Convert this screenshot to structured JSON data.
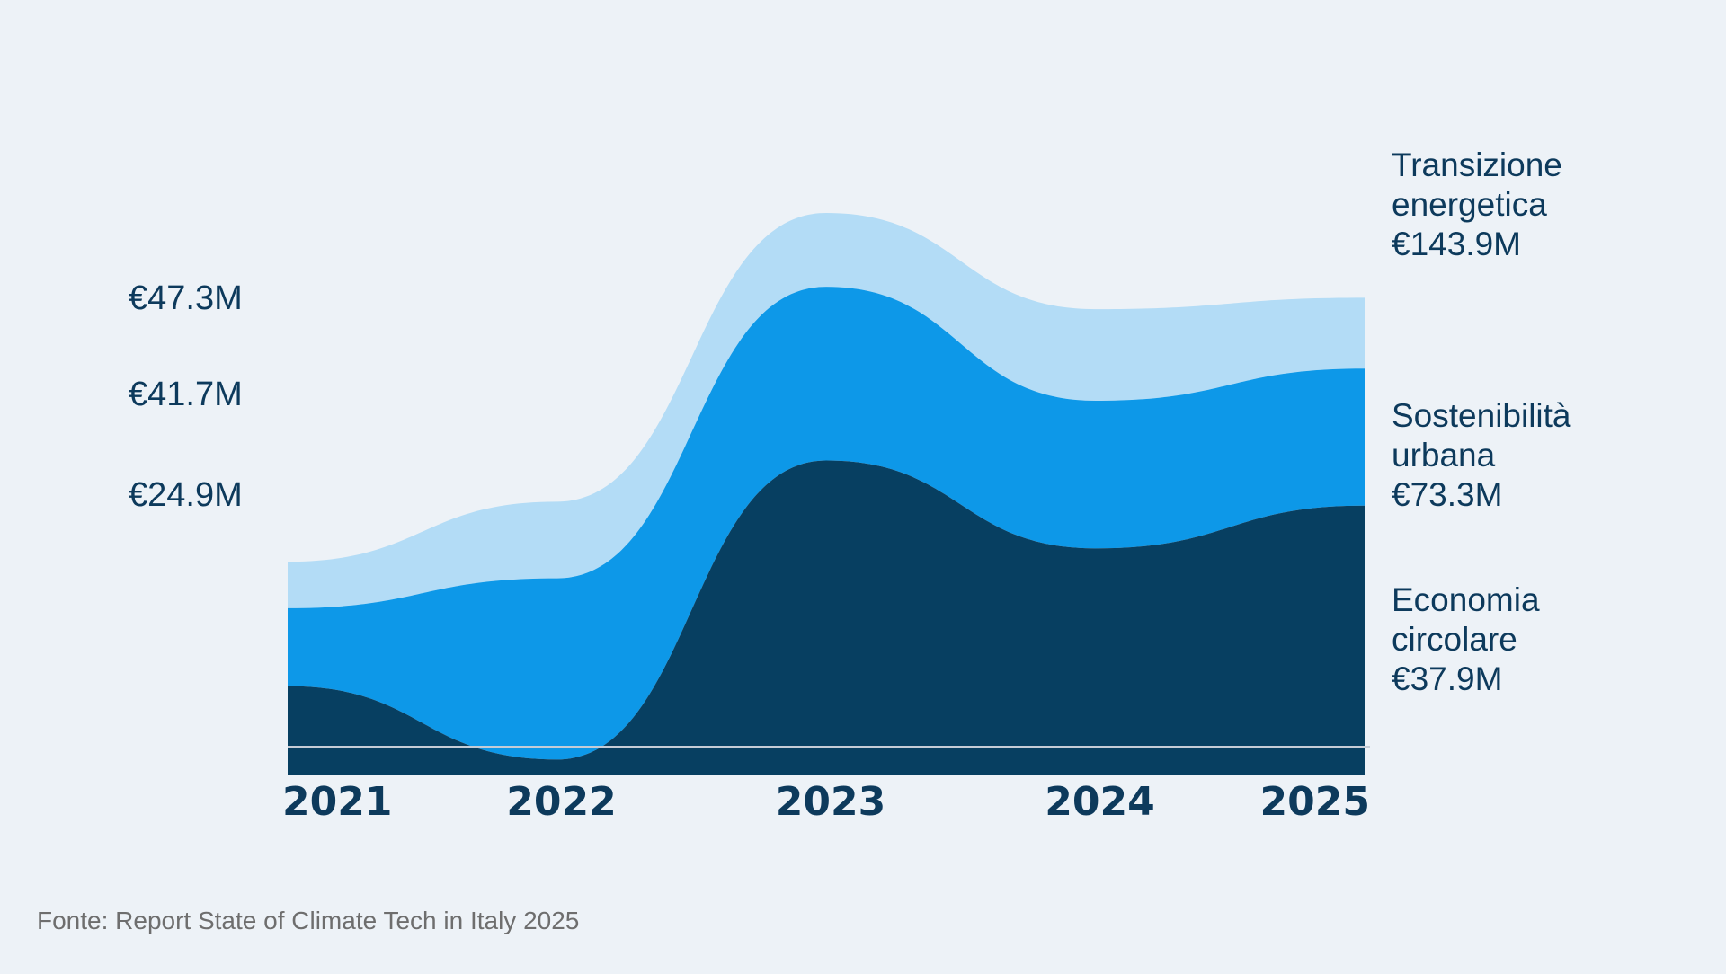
{
  "chart_data": {
    "type": "area",
    "title": "",
    "xlabel": "",
    "ylabel": "",
    "grid": false,
    "legend": "direct-labels-right",
    "categories": [
      "2021",
      "2022",
      "2023",
      "2024",
      "2025"
    ],
    "series": [
      {
        "name": "Transizione energetica",
        "value_label": "€143.9M",
        "start_label": "€47.3M",
        "color": "#073f61",
        "values": [
          47.3,
          8,
          168,
          121,
          143.9
        ]
      },
      {
        "name": "Sostenibilità urbana",
        "value_label": "€73.3M",
        "start_label": "€41.7M",
        "color": "#0d98e8",
        "values": [
          41.7,
          97,
          93,
          79,
          73.3
        ]
      },
      {
        "name": "Economia circolare",
        "value_label": "€37.9M",
        "start_label": "€24.9M",
        "color": "#b3dcf6",
        "values": [
          24.9,
          41,
          39.5,
          49,
          37.9
        ]
      }
    ],
    "highlight_color": "#f8f5f5",
    "axis_color": "#c5ccd6"
  },
  "source": "Fonte: Report State of Climate Tech in Italy 2025"
}
